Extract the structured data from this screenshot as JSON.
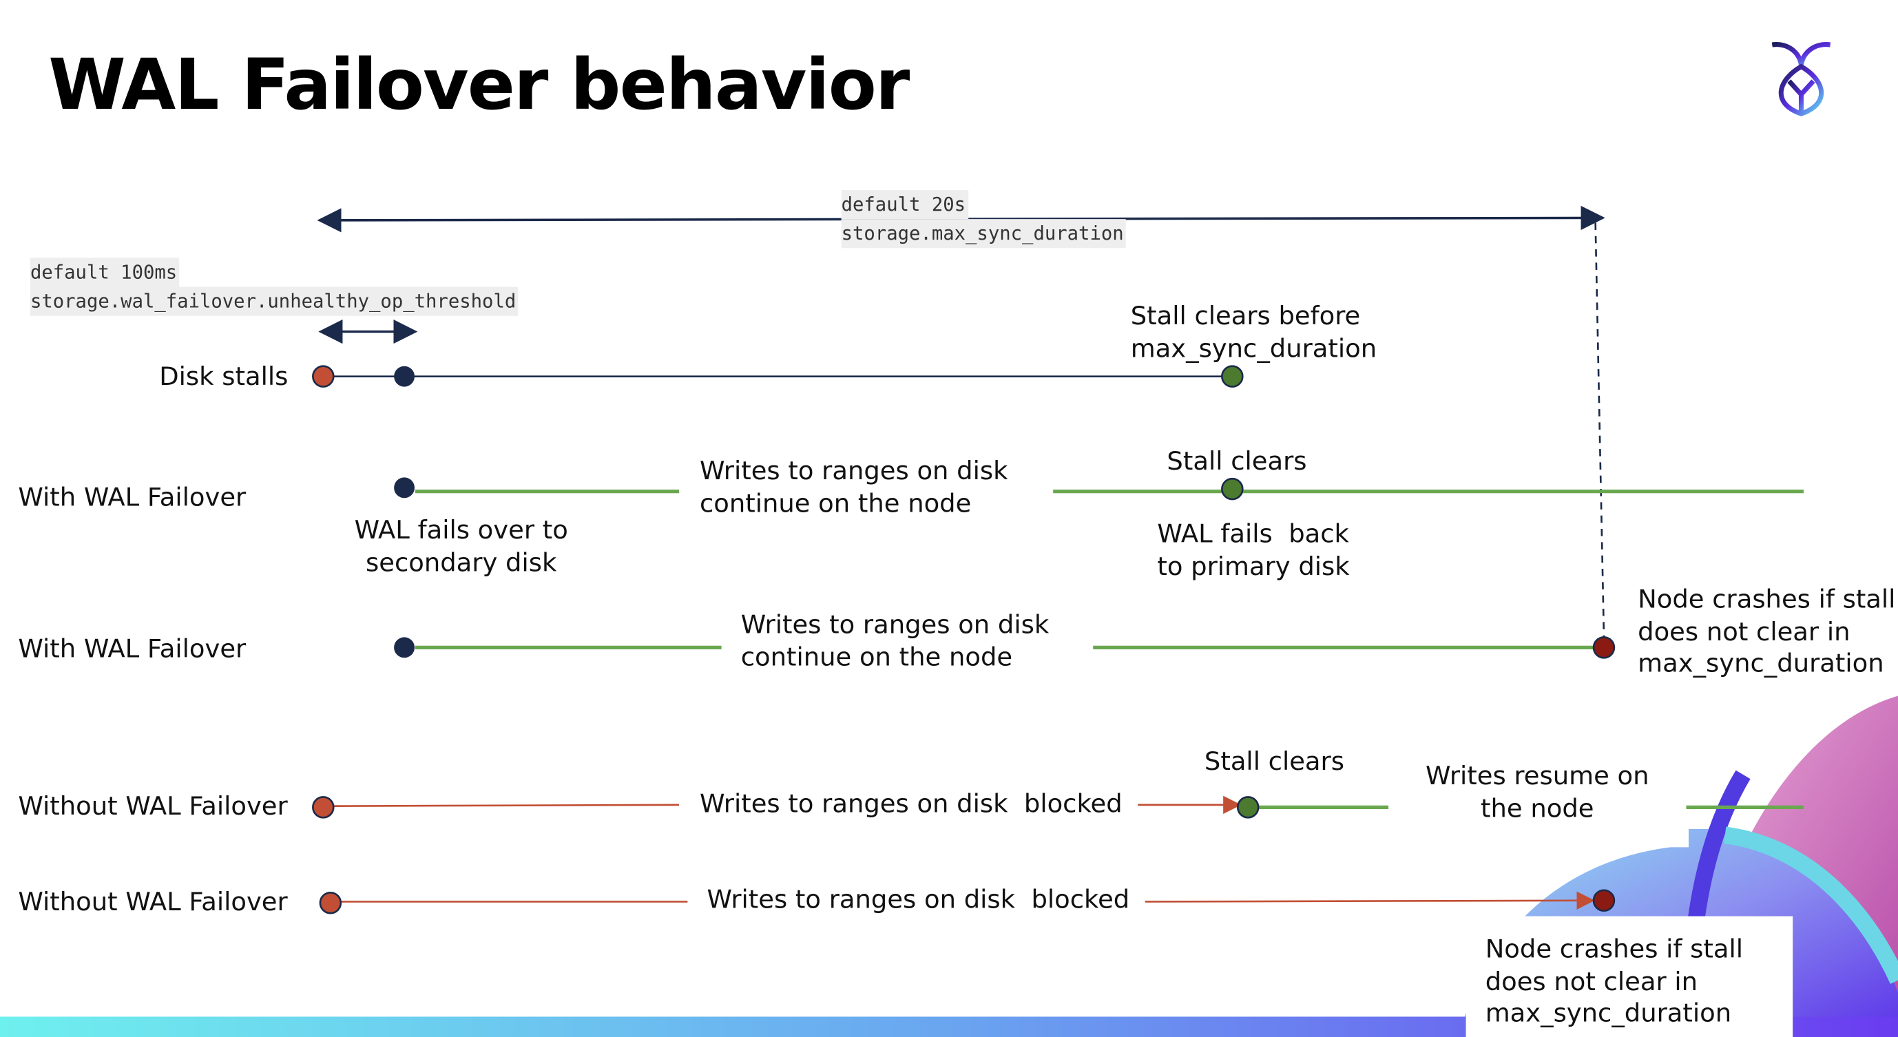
{
  "title": "WAL Failover behavior",
  "settings": {
    "max_sync": {
      "default": "default 20s",
      "name": "storage.max_sync_duration"
    },
    "unhealthy": {
      "default": "default 100ms",
      "name": "storage.wal_failover.unhealthy_op_threshold"
    }
  },
  "rows": {
    "disk_stalls": {
      "label": "Disk stalls",
      "note": [
        "Stall clears before",
        "max_sync_duration"
      ]
    },
    "with1": {
      "label": "With WAL Failover",
      "writes": [
        "Writes to ranges on disk",
        "continue on the node"
      ],
      "stall": "Stall clears",
      "failover": [
        "WAL fails over to",
        "secondary disk"
      ],
      "failback": [
        "WAL fails  back",
        "to primary disk"
      ]
    },
    "with2": {
      "label": "With WAL Failover",
      "writes": [
        "Writes to ranges on disk",
        "continue on the node"
      ],
      "crash": [
        "Node crashes if stall",
        "does not clear in",
        "max_sync_duration"
      ]
    },
    "without1": {
      "label": "Without WAL Failover",
      "writes": "Writes to ranges on disk  blocked",
      "stall": "Stall clears",
      "resume": [
        "Writes resume on",
        "the node"
      ]
    },
    "without2": {
      "label": "Without WAL Failover",
      "writes": "Writes to ranges on disk  blocked",
      "crash": [
        "Node crashes if stall",
        "does not clear in",
        "max_sync_duration"
      ]
    }
  },
  "colors": {
    "navy": "#1b2a4a",
    "green_line": "#6aa84f",
    "green_dot": "#4c7a2e",
    "red_dot": "#c24f35",
    "crash_dot": "#8b1a12",
    "red_line": "#c24f35"
  }
}
